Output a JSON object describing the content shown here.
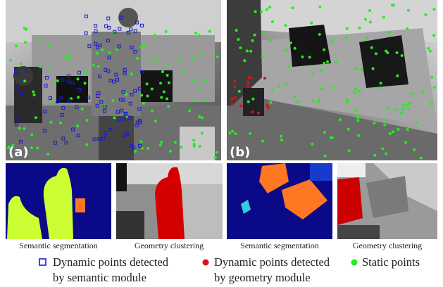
{
  "panels": [
    {
      "label": "(a)"
    },
    {
      "label": "(b)"
    }
  ],
  "thumbnails": [
    {
      "caption": "Semantic segmentation"
    },
    {
      "caption": "Geometry clustering"
    },
    {
      "caption": "Semantic segmentation"
    },
    {
      "caption": "Geometry clustering"
    }
  ],
  "legend": [
    {
      "lines": [
        "Dynamic points detected",
        "by semantic module"
      ]
    },
    {
      "lines": [
        "Dynamic points detected",
        "by geometry module"
      ]
    },
    {
      "lines": [
        "Static points"
      ]
    }
  ]
}
